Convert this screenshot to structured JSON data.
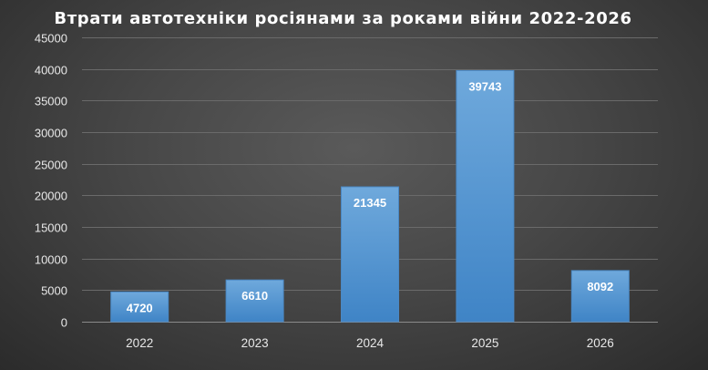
{
  "chart_data": {
    "type": "bar",
    "title": "Втрати автотехніки росіянами за роками війни 2022-2026",
    "categories": [
      "2022",
      "2023",
      "2024",
      "2025",
      "2026"
    ],
    "values": [
      4720,
      6610,
      21345,
      39743,
      8092
    ],
    "data_labels": [
      "4720",
      "6610",
      "21345",
      "39743",
      "8092"
    ],
    "ylim": [
      0,
      45000
    ],
    "yticks": [
      0,
      5000,
      10000,
      15000,
      20000,
      25000,
      30000,
      35000,
      40000,
      45000
    ],
    "ytick_labels": [
      "0",
      "5000",
      "10000",
      "15000",
      "20000",
      "25000",
      "30000",
      "35000",
      "40000",
      "45000"
    ],
    "grid": true,
    "legend": "none",
    "bar_color": "#5b9bd5",
    "xlabel": "",
    "ylabel": ""
  }
}
